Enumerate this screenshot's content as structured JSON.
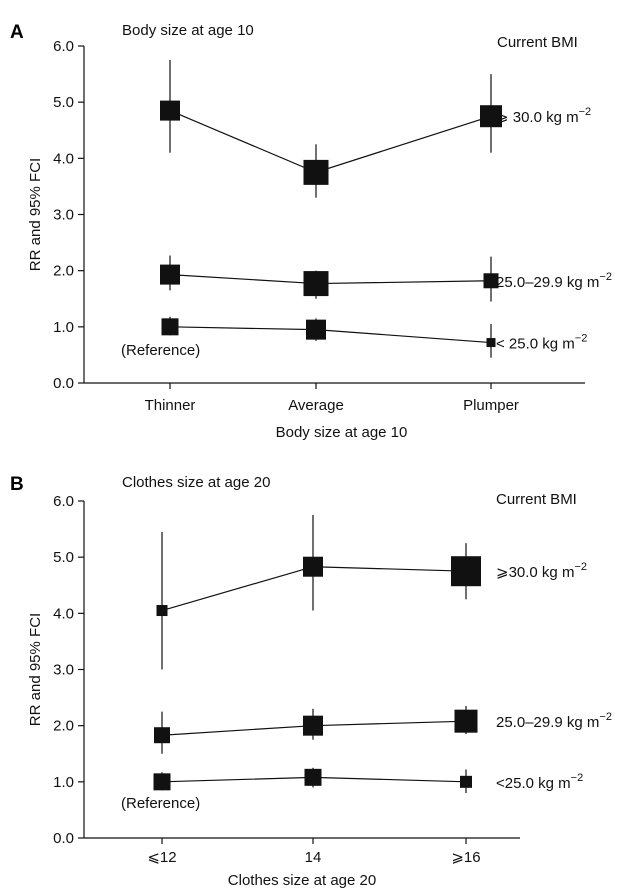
{
  "chart_data": [
    {
      "panel_label": "A",
      "type": "line",
      "title": "Body size at age 10",
      "xlabel": "Body size at age 10",
      "ylabel": "RR and 95% FCI",
      "ylim": [
        0,
        6
      ],
      "y_ticks": [
        "0.0",
        "1.0",
        "2.0",
        "3.0",
        "4.0",
        "5.0",
        "6.0"
      ],
      "categories": [
        "Thinner",
        "Average",
        "Plumper"
      ],
      "legend_title": "Current BMI",
      "reference_label": "(Reference)",
      "grid": false,
      "series": [
        {
          "label_main": "⩾ 30.0 kg m",
          "label_exp": "−2",
          "values": [
            4.85,
            3.75,
            4.75
          ],
          "ci_low": [
            4.1,
            3.3,
            4.1
          ],
          "ci_high": [
            5.75,
            4.25,
            5.5
          ],
          "marker_weight": [
            1.0,
            1.25,
            1.1
          ]
        },
        {
          "label_main": "25.0–29.9 kg m",
          "label_exp": "−2",
          "values": [
            1.93,
            1.77,
            1.82
          ],
          "ci_low": [
            1.65,
            1.5,
            1.45
          ],
          "ci_high": [
            2.27,
            2.0,
            2.25
          ],
          "marker_weight": [
            1.0,
            1.25,
            0.75
          ]
        },
        {
          "label_main": "< 25.0 kg m",
          "label_exp": "−2",
          "values": [
            1.0,
            0.95,
            0.72
          ],
          "ci_low": [
            0.85,
            0.75,
            0.45
          ],
          "ci_high": [
            1.18,
            1.15,
            1.05
          ],
          "marker_weight": [
            0.85,
            1.0,
            0.45
          ]
        }
      ]
    },
    {
      "panel_label": "B",
      "type": "line",
      "title": "Clothes size at age 20",
      "xlabel": "Clothes size at age 20",
      "ylabel": "RR and 95% FCI",
      "ylim": [
        0,
        6
      ],
      "y_ticks": [
        "0.0",
        "1.0",
        "2.0",
        "3.0",
        "4.0",
        "5.0",
        "6.0"
      ],
      "categories": [
        "⩽12",
        "14",
        "⩾16"
      ],
      "legend_title": "Current BMI",
      "reference_label": "(Reference)",
      "grid": false,
      "series": [
        {
          "label_main": "⩾30.0 kg m",
          "label_exp": "−2",
          "values": [
            4.05,
            4.83,
            4.75
          ],
          "ci_low": [
            3.0,
            4.05,
            4.25
          ],
          "ci_high": [
            5.45,
            5.75,
            5.25
          ],
          "marker_weight": [
            0.55,
            1.0,
            1.5
          ]
        },
        {
          "label_main": "25.0–29.9 kg m",
          "label_exp": "−2",
          "values": [
            1.83,
            2.0,
            2.08
          ],
          "ci_low": [
            1.5,
            1.75,
            1.85
          ],
          "ci_high": [
            2.25,
            2.3,
            2.35
          ],
          "marker_weight": [
            0.8,
            1.0,
            1.15
          ]
        },
        {
          "label_main": "<25.0 kg m",
          "label_exp": "−2",
          "values": [
            1.0,
            1.08,
            1.0
          ],
          "ci_low": [
            0.85,
            0.9,
            0.8
          ],
          "ci_high": [
            1.17,
            1.25,
            1.22
          ],
          "marker_weight": [
            0.85,
            0.85,
            0.6
          ]
        }
      ]
    }
  ]
}
